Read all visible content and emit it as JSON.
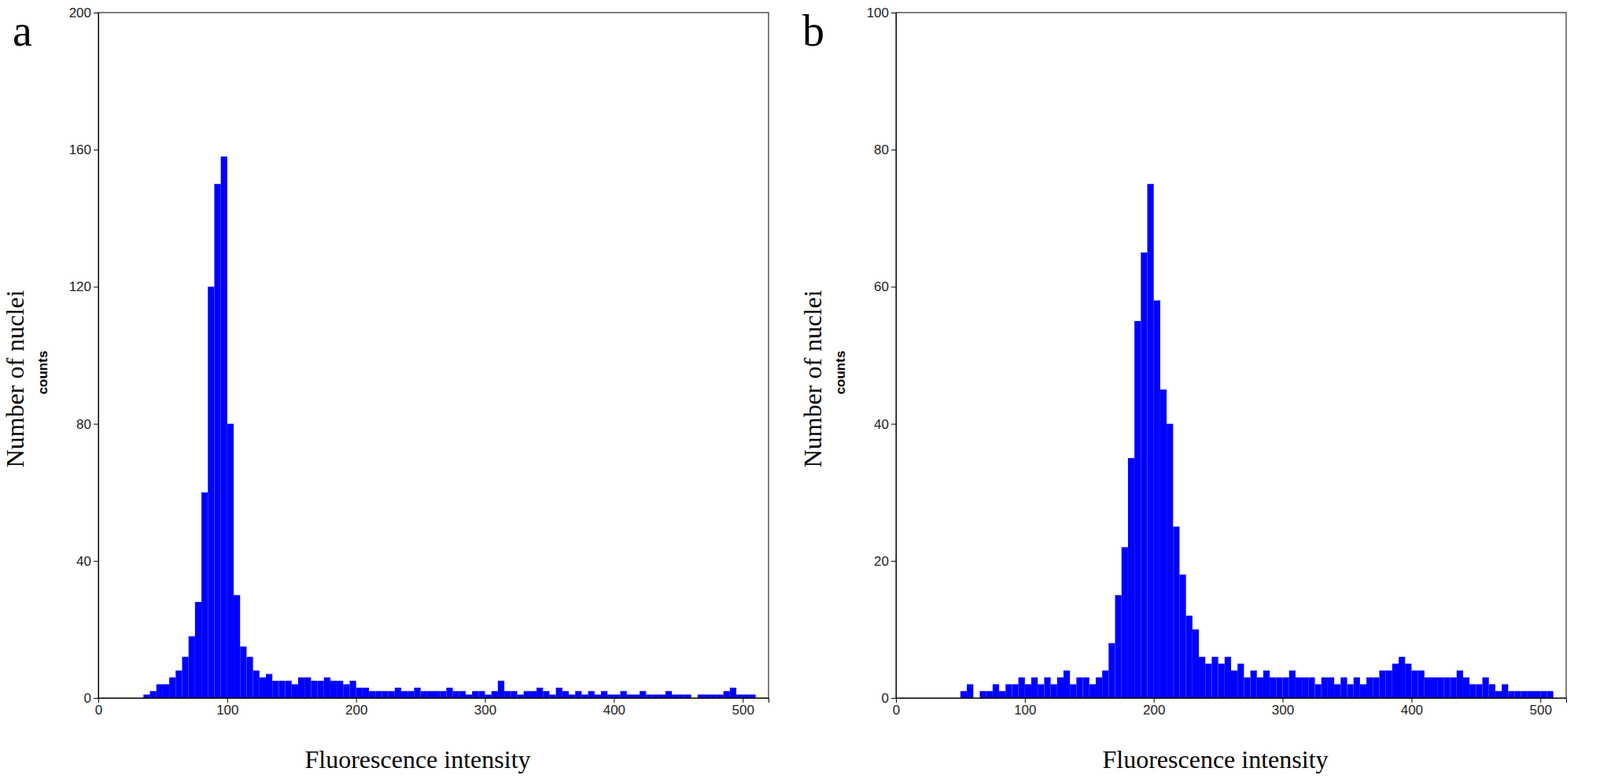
{
  "chart_data": [
    {
      "type": "histogram",
      "panel_label": "a",
      "x_label": "Fluorescence intensity",
      "y_label": "Number of nuclei",
      "y_unit_label": "counts",
      "color": "#0000ff",
      "xlim": [
        0,
        520
      ],
      "xticks": [
        0,
        100,
        200,
        300,
        400,
        500
      ],
      "ylim": [
        0,
        200
      ],
      "yticks": [
        0,
        40,
        80,
        120,
        160,
        200
      ],
      "bins": [
        30,
        35,
        40,
        45,
        50,
        55,
        60,
        65,
        70,
        75,
        80,
        85,
        90,
        95,
        100,
        105,
        110,
        115,
        120,
        125,
        130,
        135,
        140,
        145,
        150,
        155,
        160,
        165,
        170,
        175,
        180,
        185,
        190,
        195,
        200,
        205,
        210,
        215,
        220,
        225,
        230,
        235,
        240,
        245,
        250,
        255,
        260,
        265,
        270,
        275,
        280,
        285,
        290,
        295,
        300,
        305,
        310,
        315,
        320,
        325,
        330,
        335,
        340,
        345,
        350,
        355,
        360,
        365,
        370,
        375,
        380,
        385,
        390,
        395,
        400,
        405,
        410,
        415,
        420,
        425,
        430,
        435,
        440,
        445,
        450,
        455,
        460,
        465,
        470,
        475,
        480,
        485,
        490,
        495,
        500,
        505,
        510
      ],
      "counts": [
        0,
        1,
        2,
        4,
        4,
        6,
        8,
        12,
        18,
        28,
        60,
        120,
        150,
        158,
        80,
        30,
        15,
        12,
        8,
        6,
        7,
        5,
        5,
        5,
        4,
        6,
        6,
        5,
        5,
        6,
        5,
        5,
        4,
        5,
        3,
        3,
        2,
        2,
        2,
        2,
        3,
        2,
        2,
        3,
        2,
        2,
        2,
        2,
        3,
        2,
        2,
        1,
        2,
        2,
        1,
        2,
        5,
        2,
        2,
        1,
        2,
        2,
        3,
        2,
        1,
        3,
        2,
        1,
        2,
        1,
        2,
        1,
        2,
        1,
        1,
        2,
        1,
        1,
        2,
        1,
        1,
        1,
        2,
        1,
        1,
        1,
        0,
        1,
        1,
        1,
        1,
        2,
        3,
        1,
        1,
        1
      ]
    },
    {
      "type": "histogram",
      "panel_label": "b",
      "x_label": "Fluorescence intensity",
      "y_label": "Number of nuclei",
      "y_unit_label": "counts",
      "color": "#0000ff",
      "xlim": [
        0,
        520
      ],
      "xticks": [
        0,
        100,
        200,
        300,
        400,
        500
      ],
      "ylim": [
        0,
        100
      ],
      "yticks": [
        0,
        20,
        40,
        60,
        80,
        100
      ],
      "bins": [
        30,
        35,
        40,
        45,
        50,
        55,
        60,
        65,
        70,
        75,
        80,
        85,
        90,
        95,
        100,
        105,
        110,
        115,
        120,
        125,
        130,
        135,
        140,
        145,
        150,
        155,
        160,
        165,
        170,
        175,
        180,
        185,
        190,
        195,
        200,
        205,
        210,
        215,
        220,
        225,
        230,
        235,
        240,
        245,
        250,
        255,
        260,
        265,
        270,
        275,
        280,
        285,
        290,
        295,
        300,
        305,
        310,
        315,
        320,
        325,
        330,
        335,
        340,
        345,
        350,
        355,
        360,
        365,
        370,
        375,
        380,
        385,
        390,
        395,
        400,
        405,
        410,
        415,
        420,
        425,
        430,
        435,
        440,
        445,
        450,
        455,
        460,
        465,
        470,
        475,
        480,
        485,
        490,
        495,
        500,
        505,
        510
      ],
      "counts": [
        0,
        0,
        0,
        0,
        1,
        2,
        0,
        1,
        1,
        2,
        1,
        2,
        2,
        3,
        2,
        3,
        2,
        3,
        2,
        3,
        4,
        2,
        3,
        3,
        2,
        3,
        4,
        8,
        15,
        22,
        35,
        55,
        65,
        75,
        58,
        45,
        40,
        25,
        18,
        12,
        10,
        6,
        5,
        6,
        5,
        6,
        4,
        5,
        3,
        4,
        3,
        4,
        3,
        3,
        3,
        4,
        3,
        3,
        3,
        2,
        3,
        3,
        2,
        3,
        2,
        3,
        2,
        3,
        3,
        4,
        4,
        5,
        6,
        5,
        4,
        4,
        3,
        3,
        3,
        3,
        3,
        4,
        3,
        2,
        2,
        3,
        2,
        1,
        2,
        1,
        1,
        1,
        1,
        1,
        1,
        1
      ]
    }
  ]
}
